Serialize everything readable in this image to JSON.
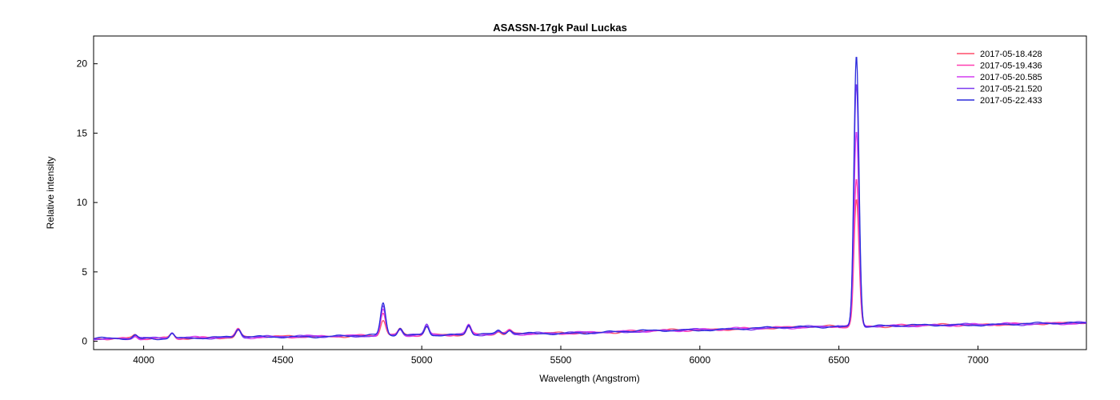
{
  "chart_data": {
    "type": "line",
    "title": "ASASSN-17gk   Paul Luckas",
    "xlabel": "Wavelength (Angstrom)",
    "ylabel": "Relative intensity",
    "xlim": [
      3820,
      7390
    ],
    "ylim": [
      -0.6,
      22
    ],
    "xticks": [
      4000,
      4500,
      5000,
      5500,
      6000,
      6500,
      7000
    ],
    "yticks": [
      0,
      5,
      10,
      15,
      20
    ],
    "grid": false,
    "legend_position": "top-right",
    "lines": [
      {
        "center": 3970,
        "width": 8,
        "amps": [
          0.25,
          0.22,
          0.22,
          0.25,
          0.25
        ]
      },
      {
        "center": 4102,
        "width": 8,
        "amps": [
          0.35,
          0.38,
          0.38,
          0.38,
          0.4
        ]
      },
      {
        "center": 4340,
        "width": 9,
        "amps": [
          0.5,
          0.55,
          0.55,
          0.58,
          0.6
        ]
      },
      {
        "center": 4861,
        "width": 9,
        "amps": [
          1.1,
          1.6,
          1.9,
          2.1,
          2.3
        ]
      },
      {
        "center": 4922,
        "width": 8,
        "amps": [
          0.4,
          0.45,
          0.45,
          0.45,
          0.5
        ]
      },
      {
        "center": 5018,
        "width": 8,
        "amps": [
          0.6,
          0.65,
          0.65,
          0.7,
          0.7
        ]
      },
      {
        "center": 5169,
        "width": 8,
        "amps": [
          0.6,
          0.65,
          0.65,
          0.65,
          0.7
        ]
      },
      {
        "center": 5276,
        "width": 8,
        "amps": [
          0.2,
          0.2,
          0.2,
          0.2,
          0.2
        ]
      },
      {
        "center": 5316,
        "width": 8,
        "amps": [
          0.25,
          0.25,
          0.25,
          0.25,
          0.25
        ]
      },
      {
        "center": 6563,
        "width": 9,
        "amps": [
          9.2,
          10.6,
          14.0,
          17.5,
          19.6
        ]
      }
    ],
    "series": [
      {
        "name": "2017-05-18.428",
        "color": "#ff4d6a"
      },
      {
        "name": "2017-05-19.436",
        "color": "#ff3fb0"
      },
      {
        "name": "2017-05-20.585",
        "color": "#d43cf0"
      },
      {
        "name": "2017-05-21.520",
        "color": "#7d3cf0"
      },
      {
        "name": "2017-05-22.433",
        "color": "#2b2bdc"
      }
    ]
  }
}
